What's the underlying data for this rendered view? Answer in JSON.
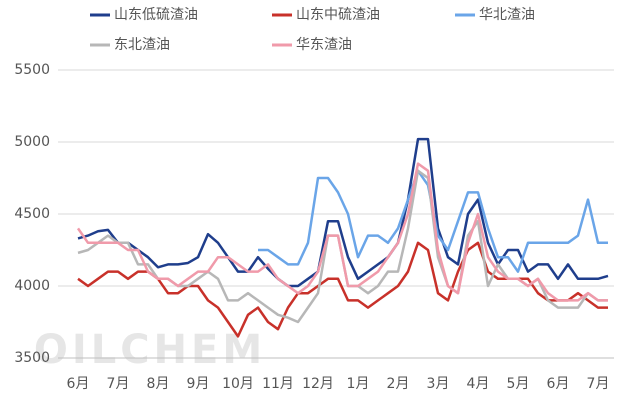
{
  "chart_data": {
    "type": "line",
    "watermark": "OILCHEM",
    "categories": [
      "6月",
      null,
      null,
      null,
      "7月",
      null,
      null,
      null,
      "8月",
      null,
      null,
      null,
      "9月",
      null,
      null,
      null,
      "10月",
      null,
      null,
      null,
      "11月",
      null,
      null,
      null,
      "12月",
      null,
      null,
      null,
      "1月",
      null,
      null,
      null,
      "2月",
      null,
      null,
      null,
      "3月",
      null,
      null,
      null,
      "4月",
      null,
      null,
      null,
      "5月",
      null,
      null,
      null,
      "6月",
      null,
      null,
      null,
      "7月",
      null
    ],
    "series": [
      {
        "name": "山东低硫渣油",
        "color": "#1f3e8c",
        "values": [
          4330,
          4350,
          4380,
          4390,
          4300,
          4300,
          4250,
          4200,
          4130,
          4150,
          4150,
          4160,
          4200,
          4360,
          4300,
          4200,
          4100,
          4100,
          4200,
          4120,
          4050,
          4000,
          4000,
          4050,
          4100,
          4450,
          4450,
          4200,
          4050,
          4100,
          4150,
          4200,
          4300,
          4600,
          5020,
          5020,
          4400,
          4200,
          4150,
          4500,
          4600,
          4300,
          4150,
          4250,
          4250,
          4100,
          4150,
          4150,
          4050,
          4150,
          4050,
          4050,
          4050,
          4070
        ]
      },
      {
        "name": "山东中硫渣油",
        "color": "#c8312a",
        "values": [
          4050,
          4000,
          4050,
          4100,
          4100,
          4050,
          4100,
          4100,
          4050,
          3950,
          3950,
          4000,
          4000,
          3900,
          3850,
          3750,
          3650,
          3800,
          3850,
          3750,
          3700,
          3850,
          3950,
          3950,
          4000,
          4050,
          4050,
          3900,
          3900,
          3850,
          3900,
          3950,
          4000,
          4100,
          4300,
          4250,
          3950,
          3900,
          4100,
          4250,
          4300,
          4100,
          4050,
          4050,
          4050,
          4050,
          3950,
          3900,
          3900,
          3900,
          3950,
          3900,
          3850,
          3850
        ]
      },
      {
        "name": "华北渣油",
        "color": "#6aa5e8",
        "values": [
          null,
          null,
          null,
          null,
          null,
          null,
          null,
          null,
          null,
          null,
          null,
          null,
          null,
          null,
          null,
          null,
          null,
          null,
          4250,
          4250,
          4200,
          4150,
          4150,
          4300,
          4750,
          4750,
          4650,
          4500,
          4200,
          4350,
          4350,
          4300,
          4400,
          4600,
          4800,
          4700,
          4350,
          4250,
          4450,
          4650,
          4650,
          4400,
          4200,
          4200,
          4100,
          4300,
          4300,
          4300,
          4300,
          4300,
          4350,
          4600,
          4300,
          4300
        ]
      },
      {
        "name": "东北渣油",
        "color": "#b7b7b7",
        "values": [
          4230,
          4250,
          4300,
          4350,
          4300,
          4300,
          4150,
          4150,
          4050,
          4050,
          4000,
          4000,
          4050,
          4100,
          4050,
          3900,
          3900,
          3950,
          3900,
          3850,
          3800,
          3780,
          3750,
          3850,
          3950,
          4350,
          4350,
          4000,
          4000,
          3950,
          4000,
          4100,
          4100,
          4400,
          4800,
          4750,
          4200,
          4000,
          3950,
          4350,
          4450,
          4000,
          4150,
          4050,
          4050,
          4000,
          4050,
          3900,
          3850,
          3850,
          3850,
          3950,
          3900,
          3900
        ]
      },
      {
        "name": "华东渣油",
        "color": "#f09aaa",
        "values": [
          4400,
          4300,
          4300,
          4300,
          4300,
          4250,
          4250,
          4100,
          4050,
          4050,
          4000,
          4050,
          4100,
          4100,
          4200,
          4200,
          4150,
          4100,
          4100,
          4150,
          4050,
          4000,
          3950,
          4000,
          4100,
          4350,
          4350,
          4000,
          4000,
          4050,
          4100,
          4200,
          4300,
          4500,
          4850,
          4800,
          4250,
          4000,
          3950,
          4300,
          4500,
          4200,
          4100,
          4050,
          4050,
          4000,
          4050,
          3950,
          3900,
          3900,
          3900,
          3950,
          3900,
          3900
        ]
      }
    ],
    "ylim": [
      3500,
      5500
    ],
    "yticks": [
      3500,
      4000,
      4500,
      5000,
      5500
    ],
    "grid": true
  }
}
